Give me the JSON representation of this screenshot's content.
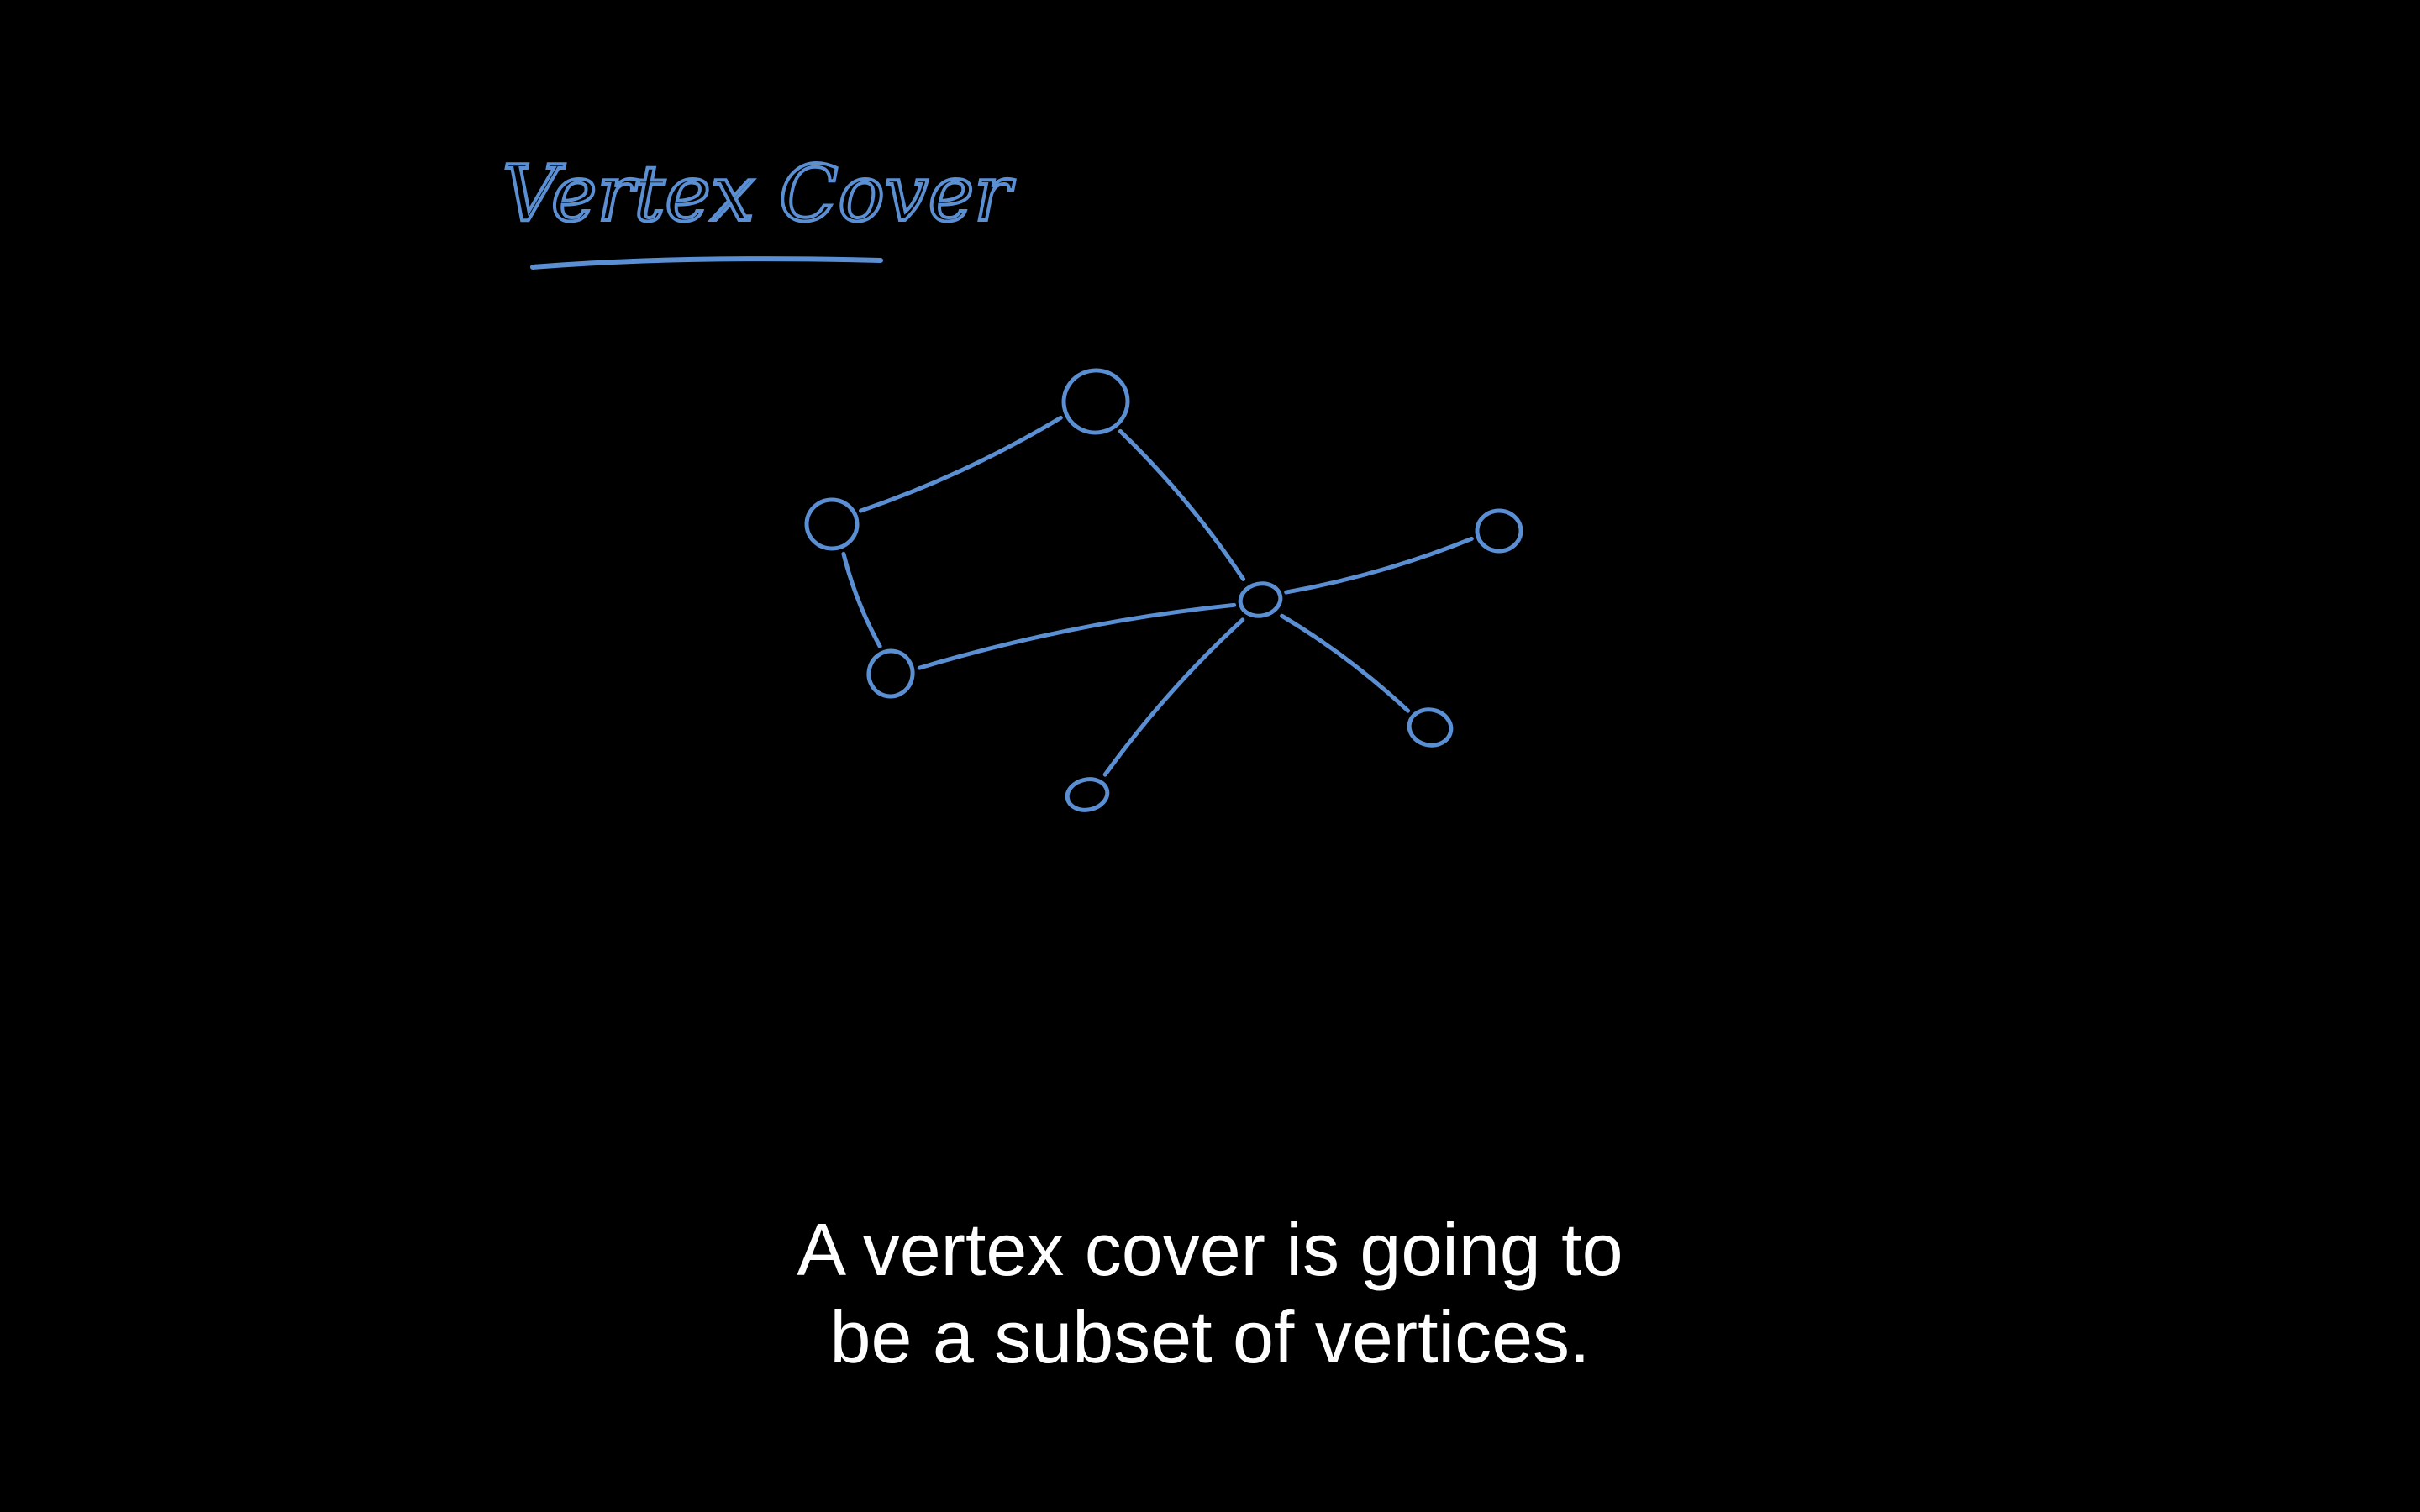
{
  "colors": {
    "background": "#000000",
    "ink": "#5b8fd3",
    "caption": "#ffffff"
  },
  "title": {
    "text": "Vertex Cover"
  },
  "graph": {
    "nodes": [
      {
        "id": "top"
      },
      {
        "id": "left"
      },
      {
        "id": "lower-left"
      },
      {
        "id": "hub"
      },
      {
        "id": "right"
      },
      {
        "id": "lower-right"
      },
      {
        "id": "bottom"
      }
    ],
    "edges": [
      {
        "from": "left",
        "to": "top"
      },
      {
        "from": "top",
        "to": "hub"
      },
      {
        "from": "left",
        "to": "lower-left"
      },
      {
        "from": "lower-left",
        "to": "hub"
      },
      {
        "from": "hub",
        "to": "right"
      },
      {
        "from": "hub",
        "to": "lower-right"
      },
      {
        "from": "hub",
        "to": "bottom"
      }
    ]
  },
  "caption": {
    "line1": "A vertex cover is going to",
    "line2": "be a subset of vertices."
  }
}
